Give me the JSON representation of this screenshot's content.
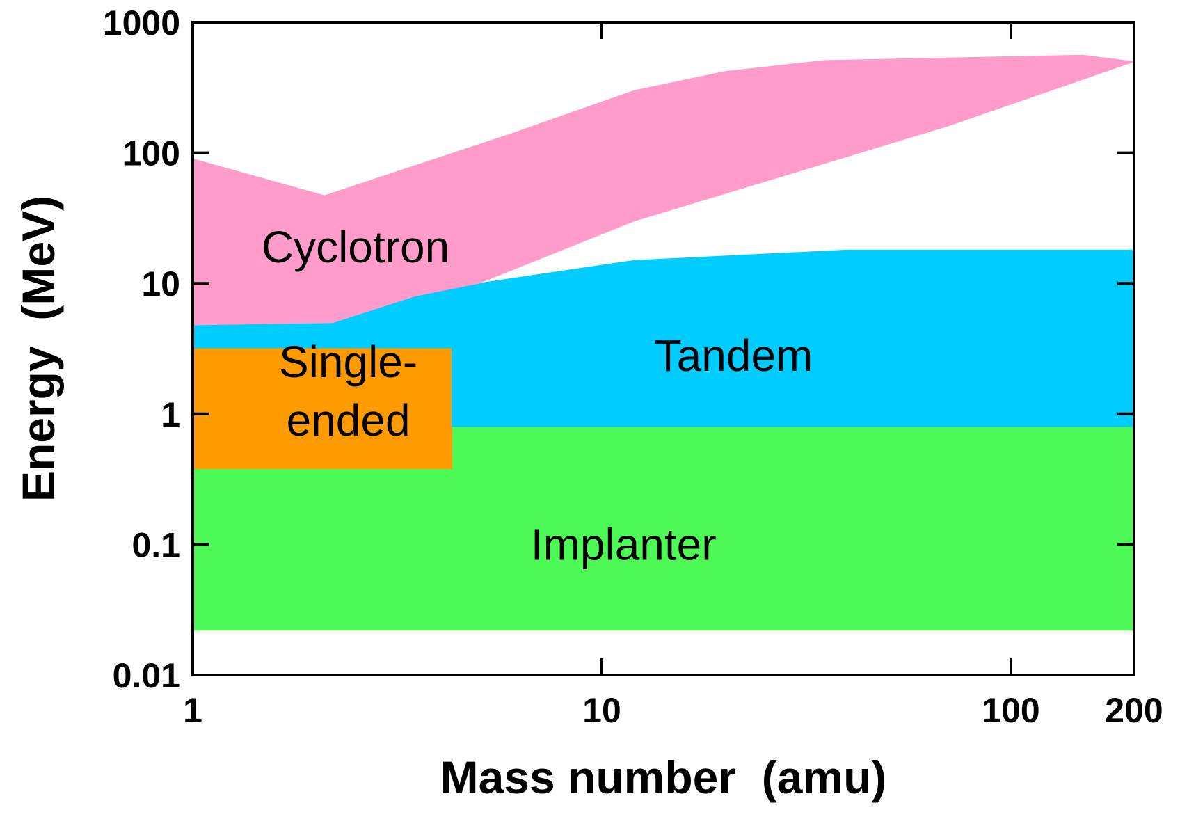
{
  "chart_data": {
    "type": "area",
    "title": "",
    "xlabel": "Mass number  (amu)",
    "ylabel": "Energy  (MeV)",
    "xscale": "log",
    "yscale": "log",
    "xlim": [
      1,
      200
    ],
    "ylim": [
      0.01,
      1000
    ],
    "xticks": [
      {
        "value": 1,
        "label": "1"
      },
      {
        "value": 10,
        "label": "10"
      },
      {
        "value": 100,
        "label": "100"
      },
      {
        "value": 200,
        "label": "200"
      }
    ],
    "yticks": [
      {
        "value": 1000,
        "label": "1000"
      },
      {
        "value": 100,
        "label": "100"
      },
      {
        "value": 10,
        "label": "10"
      },
      {
        "value": 1,
        "label": "1"
      },
      {
        "value": 0.1,
        "label": "0.1"
      },
      {
        "value": 0.01,
        "label": "0.01"
      }
    ],
    "series": [
      {
        "name": "Implanter",
        "label_lines": [
          "Implanter"
        ],
        "color": "#4dfa55",
        "label_at": [
          11.3,
          0.1
        ],
        "polygon": [
          [
            1,
            0.022
          ],
          [
            200,
            0.022
          ],
          [
            200,
            0.8
          ],
          [
            4.3,
            0.8
          ],
          [
            4.3,
            0.38
          ],
          [
            1,
            0.38
          ]
        ]
      },
      {
        "name": "Single-ended",
        "label_lines": [
          "Single-",
          "ended"
        ],
        "color": "#ff9b00",
        "label_at": [
          2.4,
          1.5
        ],
        "polygon": [
          [
            1,
            0.38
          ],
          [
            4.3,
            0.38
          ],
          [
            4.3,
            3.2
          ],
          [
            1,
            3.2
          ]
        ]
      },
      {
        "name": "Tandem",
        "label_lines": [
          "Tandem"
        ],
        "color": "#00ccff",
        "label_at": [
          21,
          2.8
        ],
        "polygon": [
          [
            1,
            3.2
          ],
          [
            4.3,
            3.2
          ],
          [
            4.3,
            0.8
          ],
          [
            200,
            0.8
          ],
          [
            200,
            18
          ],
          [
            40,
            18
          ],
          [
            12,
            15
          ],
          [
            5,
            10
          ],
          [
            3.5,
            8
          ],
          [
            2.2,
            5
          ],
          [
            1,
            4.8
          ]
        ]
      },
      {
        "name": "Cyclotron",
        "label_lines": [
          "Cyclotron"
        ],
        "color": "#ff9ccc",
        "label_at": [
          2.5,
          19
        ],
        "polygon": [
          [
            1,
            90
          ],
          [
            2.1,
            47
          ],
          [
            6,
            140
          ],
          [
            12,
            300
          ],
          [
            20,
            420
          ],
          [
            35,
            510
          ],
          [
            150,
            560
          ],
          [
            200,
            500
          ],
          [
            70,
            160
          ],
          [
            12,
            30
          ],
          [
            5,
            10
          ],
          [
            3.5,
            8
          ],
          [
            2.2,
            5
          ],
          [
            1,
            4.8
          ]
        ]
      }
    ]
  }
}
